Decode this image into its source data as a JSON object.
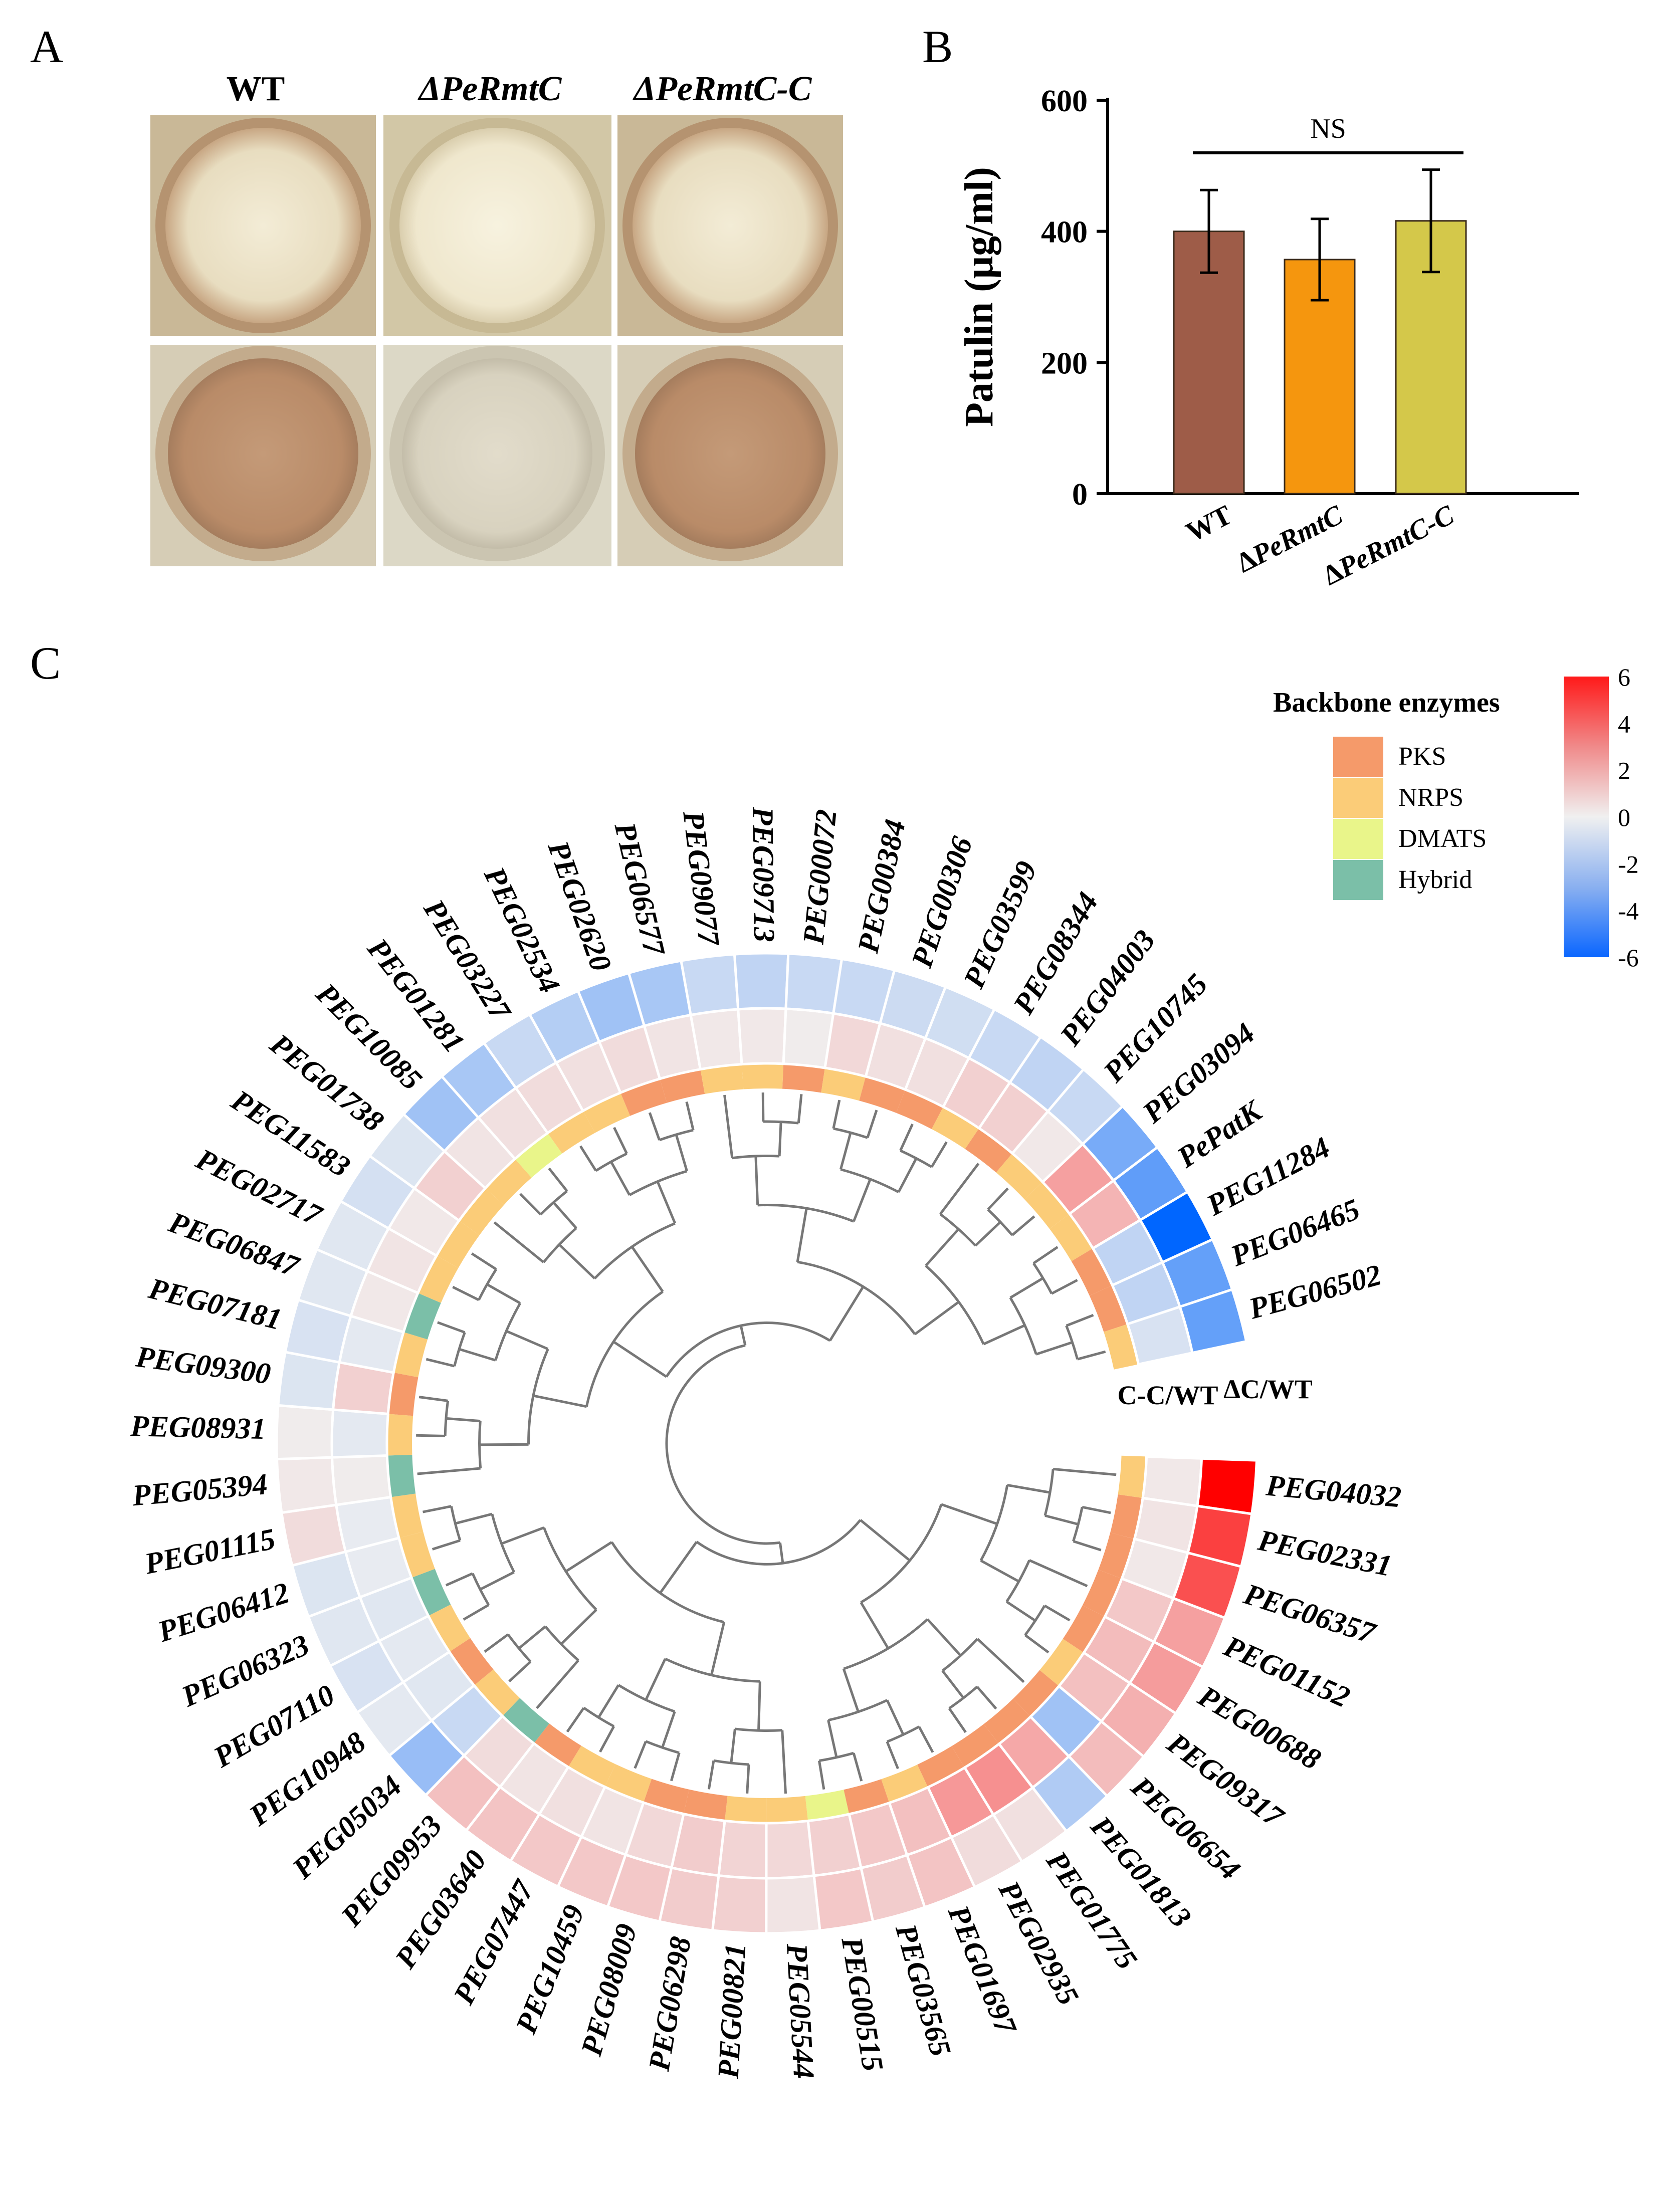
{
  "panels": {
    "a": {
      "letter": "A",
      "labels": [
        "WT",
        "ΔPeRmtC",
        "ΔPeRmtC-C"
      ]
    },
    "b": {
      "letter": "B"
    },
    "c": {
      "letter": "C"
    }
  },
  "chart_data": [
    {
      "type": "bar",
      "title": "",
      "categories": [
        "WT",
        "ΔPeRmtC",
        "ΔPeRmtC-C"
      ],
      "values": [
        400,
        357,
        416
      ],
      "errors": [
        63,
        62,
        78
      ],
      "colors": [
        "#9e5c48",
        "#f5960e",
        "#d4c84a"
      ],
      "ylabel": "Patulin (μg/ml)",
      "xlabel": "",
      "ylim": [
        0,
        600
      ],
      "yticks": [
        0,
        200,
        400,
        600
      ],
      "annotation": "NS"
    },
    {
      "type": "heatmap",
      "title": "Circular heatmap with dendrogram",
      "ring_labels": [
        "C-C/WT",
        "ΔC/WT"
      ],
      "legend_title": "Backbone enzymes",
      "enzyme_types": [
        {
          "name": "PKS",
          "color": "#f59a6a"
        },
        {
          "name": "NRPS",
          "color": "#fbcc78"
        },
        {
          "name": "DMATS",
          "color": "#e9f58a"
        },
        {
          "name": "Hybrid",
          "color": "#7bbfa8"
        }
      ],
      "colorbar": {
        "min": -6,
        "max": 6,
        "ticks": [
          "6",
          "4",
          "2",
          "0",
          "-2",
          "-4",
          "-6"
        ]
      },
      "genes": [
        {
          "id": "PEG04032",
          "type": "NRPS",
          "cc": 0.2,
          "dc": 6.0
        },
        {
          "id": "PEG02331",
          "type": "PKS",
          "cc": 0.3,
          "dc": 4.4
        },
        {
          "id": "PEG06357",
          "type": "PKS",
          "cc": 0.2,
          "dc": 4.0
        },
        {
          "id": "PEG01152",
          "type": "PKS",
          "cc": 1.0,
          "dc": 2.0
        },
        {
          "id": "PEG00688",
          "type": "PKS",
          "cc": 1.3,
          "dc": 2.1
        },
        {
          "id": "PEG09317",
          "type": "NRPS",
          "cc": 1.2,
          "dc": 1.6
        },
        {
          "id": "PEG06654",
          "type": "PKS",
          "cc": -2.0,
          "dc": 1.3
        },
        {
          "id": "PEG01813",
          "type": "PKS",
          "cc": 1.8,
          "dc": -1.6
        },
        {
          "id": "PEG01775",
          "type": "PKS",
          "cc": 2.4,
          "dc": 0.4
        },
        {
          "id": "PEG02935",
          "type": "PKS",
          "cc": 2.2,
          "dc": 0.5
        },
        {
          "id": "PEG01697",
          "type": "NRPS",
          "cc": 1.2,
          "dc": 1.1
        },
        {
          "id": "PEG03565",
          "type": "PKS",
          "cc": 1.0,
          "dc": 0.9
        },
        {
          "id": "PEG00515",
          "type": "DMATS",
          "cc": 0.8,
          "dc": 1.0
        },
        {
          "id": "PEG05544",
          "type": "NRPS",
          "cc": 0.6,
          "dc": 0.3
        },
        {
          "id": "PEG00821",
          "type": "NRPS",
          "cc": 0.7,
          "dc": 0.8
        },
        {
          "id": "PEG06298",
          "type": "PKS",
          "cc": 0.9,
          "dc": 0.9
        },
        {
          "id": "PEG08009",
          "type": "PKS",
          "cc": 0.6,
          "dc": 1.0
        },
        {
          "id": "PEG10459",
          "type": "NRPS",
          "cc": 0.3,
          "dc": 1.0
        },
        {
          "id": "PEG07447",
          "type": "NRPS",
          "cc": 0.4,
          "dc": 1.0
        },
        {
          "id": "PEG03640",
          "type": "PKS",
          "cc": 0.3,
          "dc": 1.1
        },
        {
          "id": "PEG09953",
          "type": "Hybrid",
          "cc": 0.5,
          "dc": 1.2
        },
        {
          "id": "PEG05034",
          "type": "NRPS",
          "cc": -1.0,
          "dc": -2.2
        },
        {
          "id": "PEG10948",
          "type": "PKS",
          "cc": -0.4,
          "dc": -0.3
        },
        {
          "id": "PEG07110",
          "type": "NRPS",
          "cc": -0.3,
          "dc": -0.6
        },
        {
          "id": "PEG06323",
          "type": "Hybrid",
          "cc": -0.4,
          "dc": -0.4
        },
        {
          "id": "PEG06412",
          "type": "NRPS",
          "cc": -0.2,
          "dc": -0.5
        },
        {
          "id": "PEG01115",
          "type": "NRPS",
          "cc": -0.2,
          "dc": 0.5
        },
        {
          "id": "PEG05394",
          "type": "Hybrid",
          "cc": 0.1,
          "dc": 0.2
        },
        {
          "id": "PEG08931",
          "type": "NRPS",
          "cc": -0.3,
          "dc": 0.1
        },
        {
          "id": "PEG09300",
          "type": "PKS",
          "cc": 0.8,
          "dc": -0.5
        },
        {
          "id": "PEG07181",
          "type": "NRPS",
          "cc": -0.3,
          "dc": -0.6
        },
        {
          "id": "PEG06847",
          "type": "Hybrid",
          "cc": 0.2,
          "dc": -0.4
        },
        {
          "id": "PEG02717",
          "type": "NRPS",
          "cc": 0.3,
          "dc": -0.4
        },
        {
          "id": "PEG11583",
          "type": "NRPS",
          "cc": 0.2,
          "dc": -0.7
        },
        {
          "id": "PEG01738",
          "type": "NRPS",
          "cc": 0.8,
          "dc": -0.5
        },
        {
          "id": "PEG10085",
          "type": "NRPS",
          "cc": 0.3,
          "dc": -2.0
        },
        {
          "id": "PEG01281",
          "type": "DMATS",
          "cc": 0.4,
          "dc": -1.8
        },
        {
          "id": "PEG03227",
          "type": "NRPS",
          "cc": 0.5,
          "dc": -1.0
        },
        {
          "id": "PEG02534",
          "type": "NRPS",
          "cc": 0.4,
          "dc": -1.5
        },
        {
          "id": "PEG02620",
          "type": "PKS",
          "cc": 0.5,
          "dc": -2.0
        },
        {
          "id": "PEG06577",
          "type": "PKS",
          "cc": 0.3,
          "dc": -1.8
        },
        {
          "id": "PEG09077",
          "type": "NRPS",
          "cc": 0.2,
          "dc": -1.0
        },
        {
          "id": "PEG09713",
          "type": "NRPS",
          "cc": 0.2,
          "dc": -1.2
        },
        {
          "id": "PEG00072",
          "type": "PKS",
          "cc": 0.1,
          "dc": -1.0
        },
        {
          "id": "PEG00384",
          "type": "NRPS",
          "cc": 0.6,
          "dc": -1.0
        },
        {
          "id": "PEG00306",
          "type": "PKS",
          "cc": 0.4,
          "dc": -0.9
        },
        {
          "id": "PEG03599",
          "type": "PKS",
          "cc": 0.4,
          "dc": -0.8
        },
        {
          "id": "PEG08344",
          "type": "NRPS",
          "cc": 0.8,
          "dc": -1.0
        },
        {
          "id": "PEG04003",
          "type": "PKS",
          "cc": 0.8,
          "dc": -1.2
        },
        {
          "id": "PEG10745",
          "type": "NRPS",
          "cc": 0.2,
          "dc": -1.0
        },
        {
          "id": "PEG03094",
          "type": "NRPS",
          "cc": 2.0,
          "dc": -3.0
        },
        {
          "id": "PePatK",
          "type": "NRPS",
          "cc": 1.5,
          "dc": -3.6
        },
        {
          "id": "PEG11284",
          "type": "PKS",
          "cc": -1.2,
          "dc": -6.0
        },
        {
          "id": "PEG06465",
          "type": "PKS",
          "cc": -1.2,
          "dc": -3.5
        },
        {
          "id": "PEG06502",
          "type": "NRPS",
          "cc": -0.6,
          "dc": -3.5
        }
      ]
    }
  ]
}
